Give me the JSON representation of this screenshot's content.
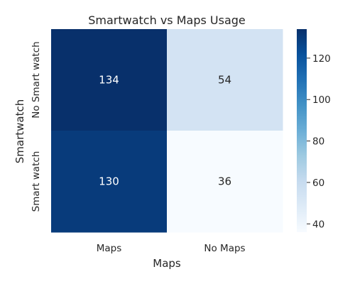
{
  "chart_data": {
    "type": "heatmap",
    "title": "Smartwatch vs Maps Usage",
    "xlabel": "Maps",
    "ylabel": "Smartwatch",
    "x_categories": [
      "Maps",
      "No Maps"
    ],
    "y_categories": [
      "No Smart watch",
      "Smart watch"
    ],
    "values": [
      [
        134,
        54
      ],
      [
        130,
        36
      ]
    ],
    "colorbar": {
      "min": 36,
      "max": 134,
      "ticks": [
        40,
        60,
        80,
        100,
        120
      ]
    },
    "colormap": "Blues",
    "colors": {
      "low": "#f7fbff",
      "high": "#08306b",
      "annotation_dark_text": "#262626",
      "annotation_light_text": "#ffffff"
    },
    "grid": false
  }
}
